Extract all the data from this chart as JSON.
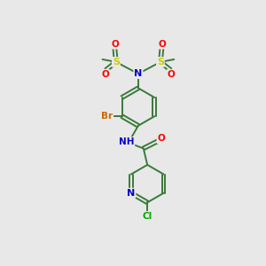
{
  "bg_color": "#e8e8e8",
  "bond_color": "#3a7a3a",
  "atom_colors": {
    "N": "#0000cc",
    "O": "#ff0000",
    "S": "#cccc00",
    "Br": "#cc6600",
    "Cl": "#00aa00",
    "C": "#3a7a3a",
    "H": "#777777"
  }
}
